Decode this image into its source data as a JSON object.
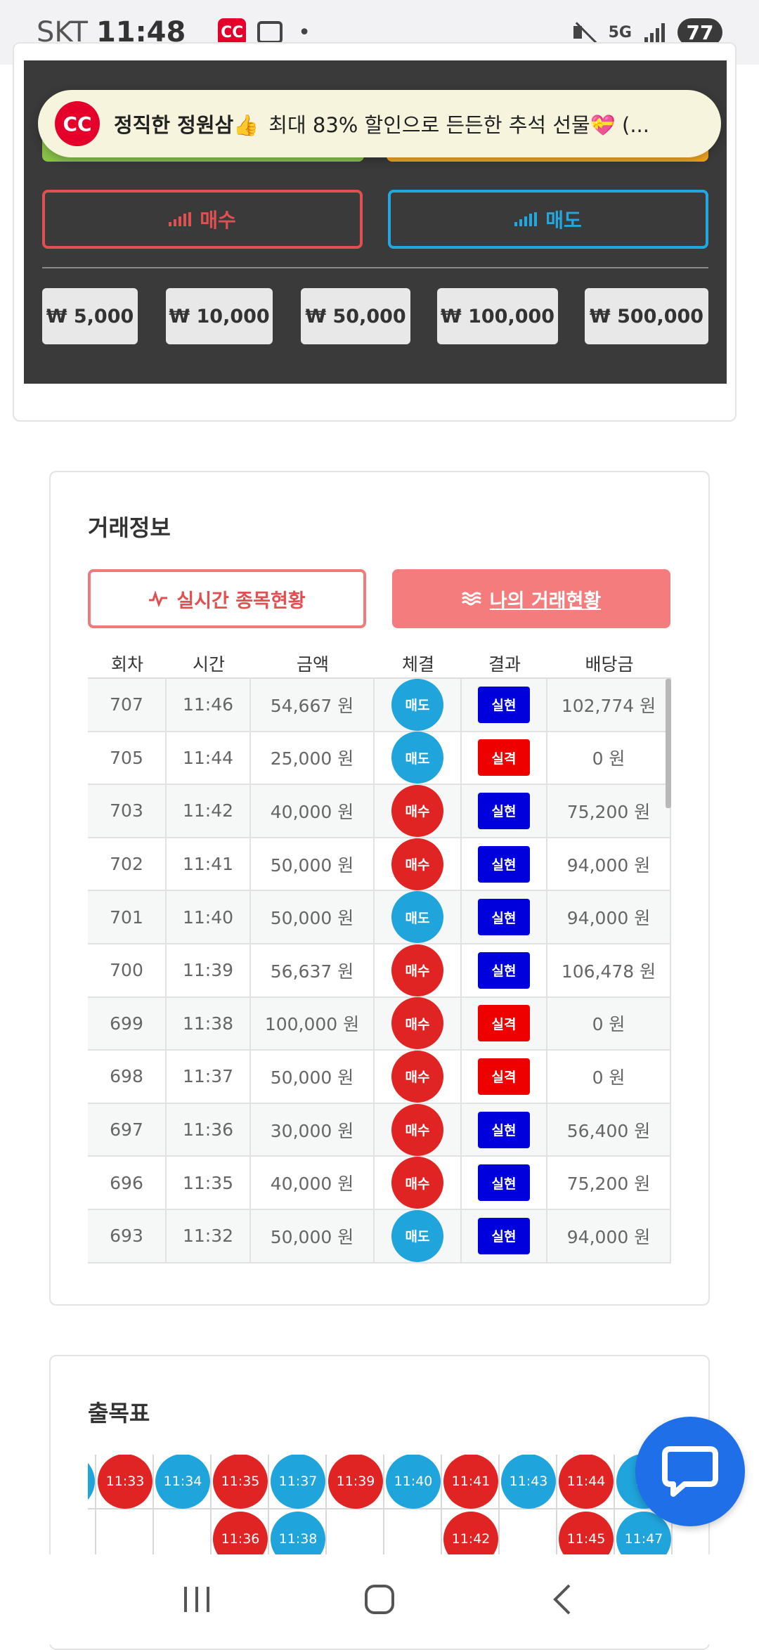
{
  "status_bar": {
    "carrier": "SKT",
    "time": "11:48",
    "app_icon": "CC",
    "dot": "•",
    "network": "5G",
    "battery": "77"
  },
  "notification": {
    "title": "정직한 정원삼👍",
    "text": "최대 83% 할인으로 든든한 추석 선물💝 (..."
  },
  "trade_panel": {
    "buy_label": "매수",
    "sell_label": "매도",
    "amounts": [
      "₩ 5,000",
      "₩ 10,000",
      "₩ 50,000",
      "₩ 100,000",
      "₩ 500,000"
    ]
  },
  "trade_info": {
    "title": "거래정보",
    "tab_live": "실시간 종목현황",
    "tab_mine": "나의 거래현황",
    "columns": [
      "회차",
      "시간",
      "금액",
      "체결",
      "결과",
      "배당금"
    ],
    "rows": [
      {
        "round": "707",
        "time": "11:46",
        "amount": "54,667 원",
        "side": "매도",
        "result": "실현",
        "payout": "102,774 원"
      },
      {
        "round": "705",
        "time": "11:44",
        "amount": "25,000 원",
        "side": "매도",
        "result": "실격",
        "payout": "0 원"
      },
      {
        "round": "703",
        "time": "11:42",
        "amount": "40,000 원",
        "side": "매수",
        "result": "실현",
        "payout": "75,200 원"
      },
      {
        "round": "702",
        "time": "11:41",
        "amount": "50,000 원",
        "side": "매수",
        "result": "실현",
        "payout": "94,000 원"
      },
      {
        "round": "701",
        "time": "11:40",
        "amount": "50,000 원",
        "side": "매도",
        "result": "실현",
        "payout": "94,000 원"
      },
      {
        "round": "700",
        "time": "11:39",
        "amount": "56,637 원",
        "side": "매수",
        "result": "실현",
        "payout": "106,478 원"
      },
      {
        "round": "699",
        "time": "11:38",
        "amount": "100,000 원",
        "side": "매수",
        "result": "실격",
        "payout": "0 원"
      },
      {
        "round": "698",
        "time": "11:37",
        "amount": "50,000 원",
        "side": "매수",
        "result": "실격",
        "payout": "0 원"
      },
      {
        "round": "697",
        "time": "11:36",
        "amount": "30,000 원",
        "side": "매수",
        "result": "실현",
        "payout": "56,400 원"
      },
      {
        "round": "696",
        "time": "11:35",
        "amount": "40,000 원",
        "side": "매수",
        "result": "실현",
        "payout": "75,200 원"
      },
      {
        "round": "693",
        "time": "11:32",
        "amount": "50,000 원",
        "side": "매도",
        "result": "실현",
        "payout": "94,000 원"
      }
    ]
  },
  "results_board": {
    "title": "출목표",
    "top_row": [
      {
        "label": "",
        "type": "sell"
      },
      {
        "label": "11:33",
        "type": "buy"
      },
      {
        "label": "11:34",
        "type": "sell"
      },
      {
        "label": "11:35",
        "type": "buy"
      },
      {
        "label": "11:37",
        "type": "sell"
      },
      {
        "label": "11:39",
        "type": "buy"
      },
      {
        "label": "11:40",
        "type": "sell"
      },
      {
        "label": "11:41",
        "type": "buy"
      },
      {
        "label": "11:43",
        "type": "sell"
      },
      {
        "label": "11:44",
        "type": "buy"
      },
      {
        "label": "11",
        "type": "sell"
      }
    ],
    "bottom_row": [
      {
        "label": "",
        "type": ""
      },
      {
        "label": "",
        "type": ""
      },
      {
        "label": "",
        "type": ""
      },
      {
        "label": "11:36",
        "type": "buy"
      },
      {
        "label": "11:38",
        "type": "sell"
      },
      {
        "label": "",
        "type": ""
      },
      {
        "label": "",
        "type": ""
      },
      {
        "label": "11:42",
        "type": "buy"
      },
      {
        "label": "",
        "type": ""
      },
      {
        "label": "11:45",
        "type": "buy"
      },
      {
        "label": "11:47",
        "type": "sell"
      }
    ]
  },
  "colors": {
    "buy": "#e02424",
    "sell": "#20a4dc",
    "realized": "#0000dd",
    "disqualified": "#ee0000",
    "panel_dark": "#3a3a3a"
  }
}
